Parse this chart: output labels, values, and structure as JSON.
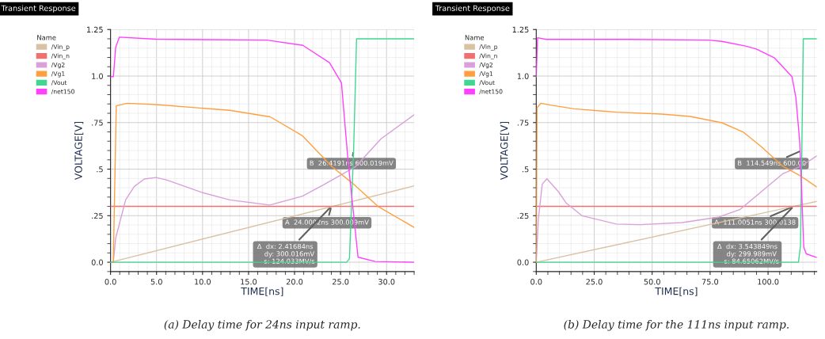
{
  "chart_data": [
    {
      "type": "line",
      "title": "Transient Response",
      "legend_title": "Name",
      "xlabel": "TIME[ns]",
      "ylabel": "VOLTAGE[V]",
      "xlim": [
        0,
        33
      ],
      "xticks": [
        {
          "value": 0,
          "label": "0.0"
        },
        {
          "value": 5,
          "label": "5.0"
        },
        {
          "value": 10,
          "label": "10.0"
        },
        {
          "value": 15,
          "label": "15.0"
        },
        {
          "value": 20,
          "label": "20.0"
        },
        {
          "value": 25,
          "label": "25.0"
        },
        {
          "value": 30,
          "label": "30.0"
        }
      ],
      "ylim": [
        -0.05,
        1.25
      ],
      "yticks": [
        {
          "value": 0,
          "label": "0.0"
        },
        {
          "value": 0.25,
          "label": ".25"
        },
        {
          "value": 0.5,
          "label": ".5"
        },
        {
          "value": 0.75,
          "label": ".75"
        },
        {
          "value": 1.0,
          "label": "1.0"
        },
        {
          "value": 1.25,
          "label": "1.25"
        }
      ],
      "grid": true,
      "legend": "left",
      "series": [
        {
          "name": "/Vin_p",
          "color": "#d9c2a3",
          "x": [
            0,
            33
          ],
          "values": [
            0,
            0.41
          ]
        },
        {
          "name": "/Vin_n",
          "color": "#f07070",
          "x": [
            0,
            33
          ],
          "values": [
            0.3,
            0.3
          ]
        },
        {
          "name": "/Vg2",
          "color": "#d9a0d9",
          "x": [
            0,
            0.3,
            0.56,
            1.64,
            2.57,
            3.66,
            4.96,
            6.14,
            9.85,
            12.95,
            17.3,
            20.86,
            23.18,
            26.6,
            29.4,
            33
          ],
          "values": [
            0,
            0,
            0.13,
            0.335,
            0.406,
            0.447,
            0.455,
            0.441,
            0.376,
            0.335,
            0.307,
            0.355,
            0.417,
            0.512,
            0.663,
            0.792
          ]
        },
        {
          "name": "/Vg1",
          "color": "#ffa040",
          "x": [
            0,
            0.3,
            0.62,
            1.8,
            4.9,
            12.95,
            17.35,
            20.86,
            24.1,
            26.4,
            29.07,
            33
          ],
          "values": [
            0,
            0,
            0.84,
            0.854,
            0.847,
            0.816,
            0.781,
            0.679,
            0.512,
            0.42,
            0.3,
            0.187
          ]
        },
        {
          "name": "/Vout",
          "color": "#40d890",
          "x": [
            0,
            25.66,
            25.97,
            26.42,
            26.74,
            33
          ],
          "values": [
            0,
            0,
            0.02,
            0.6,
            1.2,
            1.2
          ]
        },
        {
          "name": "/net150",
          "color": "#ff40ff",
          "x": [
            0,
            0.31,
            0.56,
            0.96,
            4.96,
            17,
            20.9,
            23.8,
            25.1,
            25.8,
            26.9,
            28.76,
            33
          ],
          "values": [
            0.997,
            0.997,
            1.155,
            1.209,
            1.198,
            1.193,
            1.165,
            1.072,
            0.963,
            0.553,
            0.027,
            0.004,
            0
          ]
        }
      ],
      "annotations": [
        {
          "text": "A  24.0002ns 300.009mV",
          "x": 24.0002,
          "y": 0.3
        },
        {
          "text": "B  26.4191ns 600.019mV",
          "x": 26.4191,
          "y": 0.6
        },
        {
          "text": "Δ  dx: 2.41684ns\n    dy: 300.016mV\n    s: 124.033MV/s",
          "x": 24.0002,
          "y": 0.3
        },
        "(a) Delay time for 24ns input ramp."
      ]
    },
    {
      "type": "line",
      "title": "Transient Response",
      "legend_title": "Name",
      "xlabel": "TIME[ns]",
      "ylabel": "VOLTAGE[V]",
      "xlim": [
        0,
        121
      ],
      "xticks": [
        {
          "value": 0,
          "label": "0.0"
        },
        {
          "value": 25,
          "label": "25.0"
        },
        {
          "value": 50,
          "label": "50.0"
        },
        {
          "value": 75,
          "label": "75.0"
        },
        {
          "value": 100,
          "label": "100.0"
        }
      ],
      "ylim": [
        -0.05,
        1.25
      ],
      "yticks": [
        {
          "value": 0,
          "label": "0.0"
        },
        {
          "value": 0.25,
          "label": ".25"
        },
        {
          "value": 0.5,
          "label": ".5"
        },
        {
          "value": 0.75,
          "label": ".75"
        },
        {
          "value": 1.0,
          "label": "1.0"
        },
        {
          "value": 1.25,
          "label": "1.25"
        }
      ],
      "grid": true,
      "legend": "left",
      "series": [
        {
          "name": "/Vin_p",
          "color": "#d9c2a3",
          "x": [
            0,
            121
          ],
          "values": [
            0,
            0.327
          ]
        },
        {
          "name": "/Vin_n",
          "color": "#f07070",
          "x": [
            0,
            121
          ],
          "values": [
            0.3,
            0.3
          ]
        },
        {
          "name": "/Vg2",
          "color": "#d9a0d9",
          "x": [
            0,
            0.9,
            2.6,
            4.6,
            9.5,
            12.9,
            19.7,
            34.5,
            44.8,
            63,
            78.9,
            88,
            97.2,
            106.3,
            114.2,
            121
          ],
          "values": [
            0,
            0.23,
            0.42,
            0.448,
            0.38,
            0.318,
            0.25,
            0.205,
            0.202,
            0.213,
            0.243,
            0.284,
            0.38,
            0.475,
            0.516,
            0.571
          ]
        },
        {
          "name": "/Vg1",
          "color": "#ffa040",
          "x": [
            0,
            0.34,
            2.05,
            6.0,
            16.3,
            34.5,
            53.9,
            66.4,
            80.1,
            89.2,
            97.2,
            106.3,
            114.2,
            121
          ],
          "values": [
            0,
            0.83,
            0.854,
            0.844,
            0.824,
            0.806,
            0.796,
            0.783,
            0.749,
            0.7,
            0.619,
            0.516,
            0.462,
            0.404
          ]
        },
        {
          "name": "/Vout",
          "color": "#40d890",
          "x": [
            0,
            113.1,
            114.0,
            114.55,
            115.2,
            121
          ],
          "values": [
            0,
            0,
            0.09,
            0.6,
            1.2,
            1.2
          ]
        },
        {
          "name": "/net150",
          "color": "#ff40ff",
          "x": [
            0,
            0.57,
            4.3,
            40.2,
            74.4,
            80.1,
            90.3,
            94.9,
            102.8,
            110.3,
            112,
            113.7,
            115.4,
            116.5,
            121
          ],
          "values": [
            0.995,
            1.206,
            1.197,
            1.197,
            1.193,
            1.186,
            1.161,
            1.145,
            1.097,
            0.997,
            0.885,
            0.64,
            0.08,
            0.045,
            0.025
          ]
        }
      ],
      "annotations": [
        {
          "text": "A  111.0051ns 300.0138",
          "x": 111.0051,
          "y": 0.3
        },
        {
          "text": "B  114.549ns 600.00",
          "x": 114.549,
          "y": 0.6
        },
        {
          "text": "Δ  dx: 3.543849ns\n    dy: 299.989mV\n    s: 84.65062MV/s",
          "x": 111.0051,
          "y": 0.3
        },
        "(b) Delay time for the 111ns input ramp."
      ]
    }
  ]
}
